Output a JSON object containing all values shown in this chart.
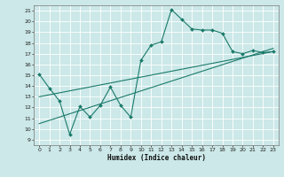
{
  "title": "",
  "xlabel": "Humidex (Indice chaleur)",
  "ylabel": "",
  "bg_color": "#cce8e8",
  "line_color": "#1a7a6a",
  "xlim": [
    -0.5,
    23.5
  ],
  "ylim": [
    8.5,
    21.5
  ],
  "xticks": [
    0,
    1,
    2,
    3,
    4,
    5,
    6,
    7,
    8,
    9,
    10,
    11,
    12,
    13,
    14,
    15,
    16,
    17,
    18,
    19,
    20,
    21,
    22,
    23
  ],
  "yticks": [
    9,
    10,
    11,
    12,
    13,
    14,
    15,
    16,
    17,
    18,
    19,
    20,
    21
  ],
  "line1_x": [
    0,
    1,
    2,
    3,
    4,
    5,
    6,
    7,
    8,
    9,
    10,
    11,
    12,
    13,
    14,
    15,
    16,
    17,
    18,
    19,
    20,
    21,
    22,
    23
  ],
  "line1_y": [
    15.1,
    13.8,
    12.6,
    9.5,
    12.1,
    11.1,
    12.2,
    13.9,
    12.2,
    11.1,
    16.4,
    17.8,
    18.1,
    21.1,
    20.2,
    19.3,
    19.2,
    19.2,
    18.9,
    17.2,
    17.0,
    17.3,
    17.1,
    17.2
  ],
  "line2_x": [
    0,
    23
  ],
  "line2_y": [
    13.0,
    17.2
  ],
  "line3_x": [
    0,
    23
  ],
  "line3_y": [
    10.5,
    17.5
  ]
}
